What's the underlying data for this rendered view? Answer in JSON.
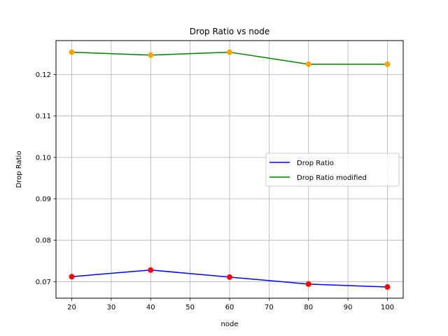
{
  "chart_data": {
    "type": "line",
    "title": "Drop Ratio vs node",
    "xlabel": "node",
    "ylabel": "Drop Ratio",
    "x": [
      20,
      40,
      60,
      80,
      100
    ],
    "xticks": [
      20,
      30,
      40,
      50,
      60,
      70,
      80,
      90,
      100
    ],
    "yticks": [
      0.07,
      0.08,
      0.09,
      0.1,
      0.11,
      0.12
    ],
    "xlim": [
      16,
      104
    ],
    "ylim": [
      0.066,
      0.1282
    ],
    "grid": true,
    "legend_position": "center-right",
    "series": [
      {
        "name": "Drop Ratio",
        "values": [
          0.0712,
          0.0728,
          0.0711,
          0.0694,
          0.0687
        ],
        "line_color": "#0000ff",
        "marker_color": "#ff0000"
      },
      {
        "name": "Drop Ratio modified",
        "values": [
          0.1254,
          0.1247,
          0.1254,
          0.1225,
          0.1225
        ],
        "line_color": "#008000",
        "marker_color": "#ffa500"
      }
    ]
  }
}
